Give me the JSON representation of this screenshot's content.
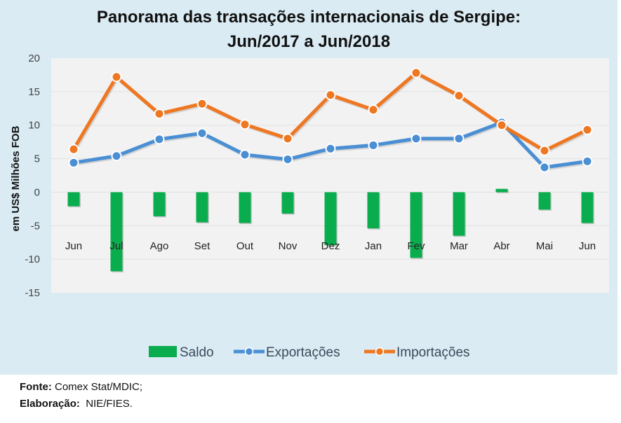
{
  "chart_data": {
    "type": "bar+line",
    "title_lines": [
      "Panorama  das transações internacionais de Sergipe:",
      "Jun/2017 a Jun/2018"
    ],
    "xlabel": "",
    "ylabel": "em US$ Milhões FOB",
    "ylim": [
      -15,
      20
    ],
    "yticks": [
      20,
      15,
      10,
      5,
      0,
      -5,
      -10,
      -15
    ],
    "grid": true,
    "categories": [
      "Jun",
      "Jul",
      "Ago",
      "Set",
      "Out",
      "Nov",
      "Dez",
      "Jan",
      "Fev",
      "Mar",
      "Abr",
      "Mai",
      "Jun"
    ],
    "series": [
      {
        "name": "Saldo",
        "kind": "bar",
        "color": "#0aad4e",
        "values": [
          -2.1,
          -11.8,
          -3.6,
          -4.5,
          -4.6,
          -3.2,
          -7.9,
          -5.4,
          -9.8,
          -6.5,
          0.5,
          -2.6,
          -4.6
        ]
      },
      {
        "name": "Exportações",
        "kind": "line",
        "color": "#4a8fd4",
        "values": [
          4.4,
          5.4,
          7.9,
          8.8,
          5.6,
          4.9,
          6.5,
          7.0,
          8.0,
          8.0,
          10.4,
          3.7,
          4.6
        ]
      },
      {
        "name": "Importações",
        "kind": "line",
        "color": "#ee7722",
        "values": [
          6.4,
          17.2,
          11.7,
          13.2,
          10.1,
          8.0,
          14.5,
          12.3,
          17.8,
          14.4,
          10.0,
          6.2,
          9.3
        ]
      }
    ],
    "legend_position": "bottom"
  },
  "footer": {
    "source_label": "Fonte:",
    "source_value": " Comex Stat/MDIC;",
    "elab_label": "Elaboração:",
    "elab_value": "  NIE/FIES."
  }
}
